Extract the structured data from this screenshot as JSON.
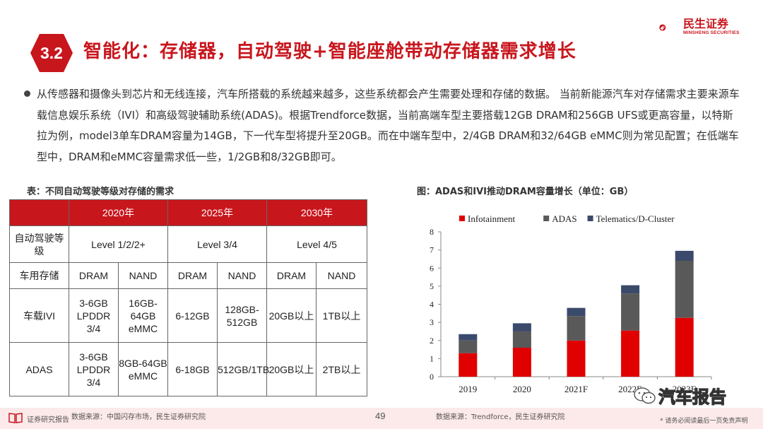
{
  "header": {
    "section_number": "3.2",
    "title": "智能化：存储器，自动驾驶+智能座舱带动存储器需求增长",
    "brand_name": "民生证券",
    "brand_name_en": "MINSHENG SECURITIES"
  },
  "body": {
    "paragraph": "从传感器和摄像头到芯片和无线连接，汽车所搭载的系统越来越多，这些系统都会产生需要处理和存储的数据。 当前新能源汽车对存储需求主要来源车载信息娱乐系统（IVI）和高级驾驶辅助系统(ADAS)。根据Trendforce数据，当前高端车型主要搭载12GB DRAM和256GB UFS或更高容量，以特斯拉为例，model3单车DRAM容量为14GB，下一代车型将提升至20GB。而在中端车型中，2/4GB DRAM和32/64GB eMMC则为常见配置；在低端车型中，DRAM和eMMC容量需求低一些，1/2GB和8/32GB即可。"
  },
  "table": {
    "caption": "表：不同自动驾驶等级对存储的需求",
    "years": [
      "2020年",
      "2025年",
      "2030年"
    ],
    "level_label": "自动驾驶等级",
    "levels": [
      "Level 1/2/2+",
      "Level 3/4",
      "Level 4/5"
    ],
    "storage_label": "车用存储",
    "storage_types": [
      "DRAM",
      "NAND",
      "DRAM",
      "NAND",
      "DRAM",
      "NAND"
    ],
    "rows": [
      {
        "label": "车载IVI",
        "cells": [
          "3-6GB LPDDR 3/4",
          "16GB-64GB eMMC",
          "6-12GB",
          "128GB-512GB",
          "20GB以上",
          "1TB以上"
        ]
      },
      {
        "label": "ADAS",
        "cells": [
          "3-6GB LPDDR 3/4",
          "8GB-64GB eMMC",
          "6-18GB",
          "512GB/1TB",
          "20GB以上",
          "2TB以上"
        ]
      }
    ]
  },
  "chart_caption": "图：ADAS和IVI推动DRAM容量增长（单位：GB）",
  "chart_data": {
    "type": "bar",
    "stacked": true,
    "title": "ADAS和IVI推动DRAM容量增长（单位：GB）",
    "categories": [
      "2019",
      "2020",
      "2021F",
      "2022E",
      "2023E"
    ],
    "series": [
      {
        "name": "Infotainment",
        "color": "#e00000",
        "values": [
          1.3,
          1.6,
          2.0,
          2.55,
          3.25
        ]
      },
      {
        "name": "ADAS",
        "color": "#595959",
        "values": [
          0.7,
          0.9,
          1.35,
          2.05,
          3.15
        ]
      },
      {
        "name": "Telematics/D-Cluster",
        "color": "#3b4a6b",
        "values": [
          0.35,
          0.45,
          0.45,
          0.45,
          0.55
        ]
      }
    ],
    "ylim": [
      0,
      8
    ],
    "yticks": [
      0,
      1,
      2,
      3,
      4,
      5,
      6,
      7,
      8
    ],
    "legend_position": "top",
    "grid": false
  },
  "footer": {
    "report_label": "证券研究报告",
    "source_left": "数据来源：中国闪存市场，民生证券研究院",
    "page": "49",
    "source_right": "数据来源：Trendforce，民生证券研究院",
    "disclaimer": "* 请务必阅读最后一页免责声明"
  },
  "watermark": "汽车报告",
  "colors": {
    "brand_red": "#c8161d",
    "footer_bg": "#fce9e9"
  }
}
